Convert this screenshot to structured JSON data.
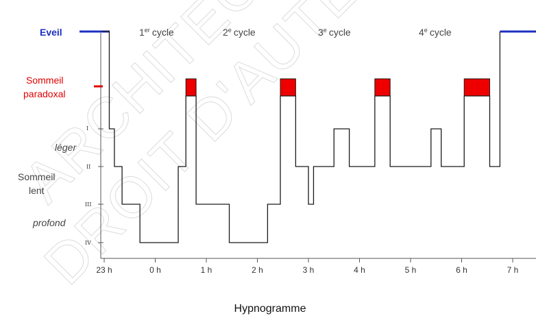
{
  "chart_data": {
    "type": "line",
    "title": "Hypnogramme",
    "x_ticks": [
      "23 h",
      "0 h",
      "1 h",
      "2 h",
      "3 h",
      "4 h",
      "5 h",
      "6 h",
      "7 h"
    ],
    "x_range_hours": [
      23,
      31
    ],
    "y_levels": [
      {
        "key": "eveil",
        "label": "Eveil",
        "color": "#1c2fc0"
      },
      {
        "key": "paradoxal",
        "label": "Sommeil paradoxal",
        "line1": "Sommeil",
        "line2": "paradoxal",
        "color": "#e00000"
      },
      {
        "key": "I",
        "label": "I"
      },
      {
        "key": "II",
        "label": "II"
      },
      {
        "key": "III",
        "label": "III"
      },
      {
        "key": "IV",
        "label": "IV"
      }
    ],
    "group_labels": {
      "leger": "léger",
      "sommeil": "Sommeil",
      "lent": "lent",
      "profond": "profond"
    },
    "cycles": [
      {
        "num": "1",
        "sup": "er",
        "word": "cycle"
      },
      {
        "num": "2",
        "sup": "e",
        "word": "cycle"
      },
      {
        "num": "3",
        "sup": "e",
        "word": "cycle"
      },
      {
        "num": "4",
        "sup": "e",
        "word": "cycle"
      }
    ],
    "hypnogram_steps": [
      {
        "t": 22.95,
        "stage": "eveil"
      },
      {
        "t": 23.1,
        "stage": "I"
      },
      {
        "t": 23.2,
        "stage": "II"
      },
      {
        "t": 23.35,
        "stage": "III"
      },
      {
        "t": 23.7,
        "stage": "IV"
      },
      {
        "t": 24.45,
        "stage": "II"
      },
      {
        "t": 24.6,
        "stage": "paradoxal"
      },
      {
        "t": 24.8,
        "stage": "III"
      },
      {
        "t": 25.45,
        "stage": "IV"
      },
      {
        "t": 26.2,
        "stage": "III"
      },
      {
        "t": 26.45,
        "stage": "paradoxal"
      },
      {
        "t": 26.75,
        "stage": "II"
      },
      {
        "t": 27.0,
        "stage": "III"
      },
      {
        "t": 27.1,
        "stage": "II"
      },
      {
        "t": 27.5,
        "stage": "I"
      },
      {
        "t": 27.8,
        "stage": "II"
      },
      {
        "t": 28.3,
        "stage": "paradoxal"
      },
      {
        "t": 28.6,
        "stage": "II"
      },
      {
        "t": 29.4,
        "stage": "I"
      },
      {
        "t": 29.6,
        "stage": "II"
      },
      {
        "t": 30.05,
        "stage": "paradoxal"
      },
      {
        "t": 30.55,
        "stage": "II"
      },
      {
        "t": 30.75,
        "stage": "eveil",
        "end": 31.5
      }
    ],
    "rem_periods": [
      {
        "start": 24.6,
        "end": 24.8
      },
      {
        "start": 26.45,
        "end": 26.75
      },
      {
        "start": 28.3,
        "end": 28.6
      },
      {
        "start": 30.05,
        "end": 30.55
      }
    ],
    "watermark": [
      "ARCHITECTURE DE NANTES",
      "DROIT D'AUTEUR"
    ]
  }
}
